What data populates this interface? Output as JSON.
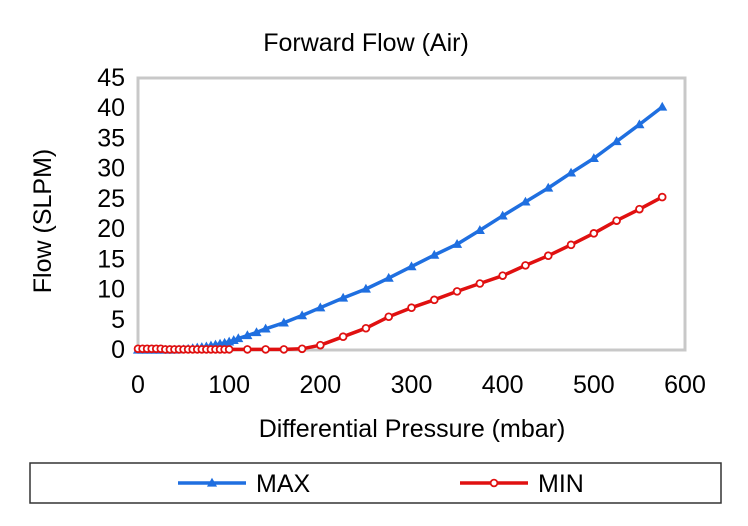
{
  "chart_data": {
    "type": "line",
    "title": "Forward Flow (Air)",
    "xlabel": "Differential Pressure (mbar)",
    "ylabel": "Flow (SLPM)",
    "xlim": [
      0,
      600
    ],
    "ylim": [
      0,
      45
    ],
    "xticks": [
      0,
      100,
      200,
      300,
      400,
      500,
      600
    ],
    "yticks": [
      0,
      5,
      10,
      15,
      20,
      25,
      30,
      35,
      40,
      45
    ],
    "grid": false,
    "legend_position": "bottom",
    "series": [
      {
        "name": "MAX",
        "color": "#1f6fe0",
        "marker": "triangle",
        "x": [
          0,
          5,
          10,
          15,
          20,
          25,
          30,
          35,
          40,
          45,
          50,
          55,
          60,
          65,
          70,
          75,
          80,
          85,
          90,
          95,
          100,
          105,
          110,
          120,
          130,
          140,
          160,
          180,
          200,
          225,
          250,
          275,
          300,
          325,
          350,
          375,
          400,
          425,
          450,
          475,
          500,
          525,
          550,
          575
        ],
        "y": [
          0,
          0,
          0,
          0,
          0,
          0,
          0,
          0,
          0,
          0.05,
          0.1,
          0.15,
          0.25,
          0.35,
          0.45,
          0.55,
          0.7,
          0.85,
          1.0,
          1.15,
          1.35,
          1.6,
          1.9,
          2.4,
          2.9,
          3.5,
          4.5,
          5.7,
          7.0,
          8.6,
          10.1,
          11.9,
          13.8,
          15.7,
          17.5,
          19.8,
          22.2,
          24.5,
          26.8,
          29.3,
          31.7,
          34.5,
          37.3,
          40.2
        ]
      },
      {
        "name": "MIN",
        "color": "#e01010",
        "marker": "circle",
        "x": [
          0,
          5,
          10,
          15,
          20,
          25,
          30,
          35,
          40,
          45,
          50,
          55,
          60,
          65,
          70,
          75,
          80,
          85,
          90,
          95,
          100,
          120,
          140,
          160,
          180,
          200,
          225,
          250,
          275,
          300,
          325,
          350,
          375,
          400,
          425,
          450,
          475,
          500,
          525,
          550,
          575
        ],
        "y": [
          0.2,
          0.2,
          0.2,
          0.2,
          0.2,
          0.2,
          0.1,
          0.1,
          0.1,
          0.1,
          0.1,
          0.1,
          0.1,
          0.1,
          0.1,
          0.1,
          0.1,
          0.1,
          0.1,
          0.1,
          0.1,
          0.1,
          0.1,
          0.1,
          0.2,
          0.8,
          2.2,
          3.6,
          5.5,
          7.0,
          8.3,
          9.7,
          11.0,
          12.3,
          14.0,
          15.6,
          17.4,
          19.3,
          21.4,
          23.3,
          25.3
        ]
      }
    ]
  }
}
